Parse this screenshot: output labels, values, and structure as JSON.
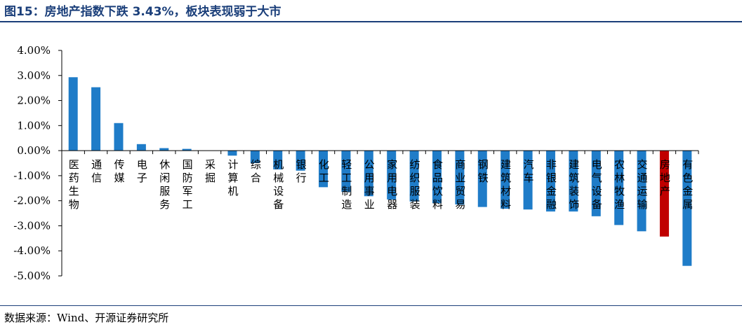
{
  "title": "图15：房地产指数下跌 3.43%，板块表现弱于大市",
  "source": "数据来源：Wind、开源证券研究所",
  "colors": {
    "bar": "#1f7cc8",
    "highlight": "#c00000",
    "title": "#1b3f7a",
    "axis": "#000000"
  },
  "chart_data": {
    "type": "bar",
    "title": "",
    "xlabel": "",
    "ylabel": "",
    "ylim": [
      -5,
      4
    ],
    "yticks": [
      4,
      3,
      2,
      1,
      0,
      -1,
      -2,
      -3,
      -4,
      -5
    ],
    "ytick_labels": [
      "4.00%",
      "3.00%",
      "2.00%",
      "1.00%",
      "0.00%",
      "-1.00%",
      "-2.00%",
      "-3.00%",
      "-4.00%",
      "-5.00%"
    ],
    "grid": false,
    "legend": "none",
    "highlight_category": "房地产",
    "categories": [
      "医药生物",
      "通信",
      "传媒",
      "电子",
      "休闲服务",
      "国防军工",
      "采掘",
      "计算机",
      "综合",
      "机械设备",
      "银行",
      "化工",
      "轻工制造",
      "公用事业",
      "家用电器",
      "纺织服装",
      "食品饮料",
      "商业贸易",
      "钢铁",
      "建筑材料",
      "汽车",
      "非银金融",
      "建筑装饰",
      "电气设备",
      "农林牧渔",
      "交通运输",
      "房地产",
      "有色金属"
    ],
    "values": [
      2.93,
      2.53,
      1.1,
      0.26,
      0.1,
      0.07,
      0.0,
      -0.2,
      -0.5,
      -0.75,
      -0.8,
      -1.46,
      -1.65,
      -1.82,
      -1.95,
      -2.03,
      -2.1,
      -2.15,
      -2.25,
      -2.32,
      -2.35,
      -2.43,
      -2.43,
      -2.62,
      -2.97,
      -3.22,
      -3.43,
      -4.6
    ]
  }
}
